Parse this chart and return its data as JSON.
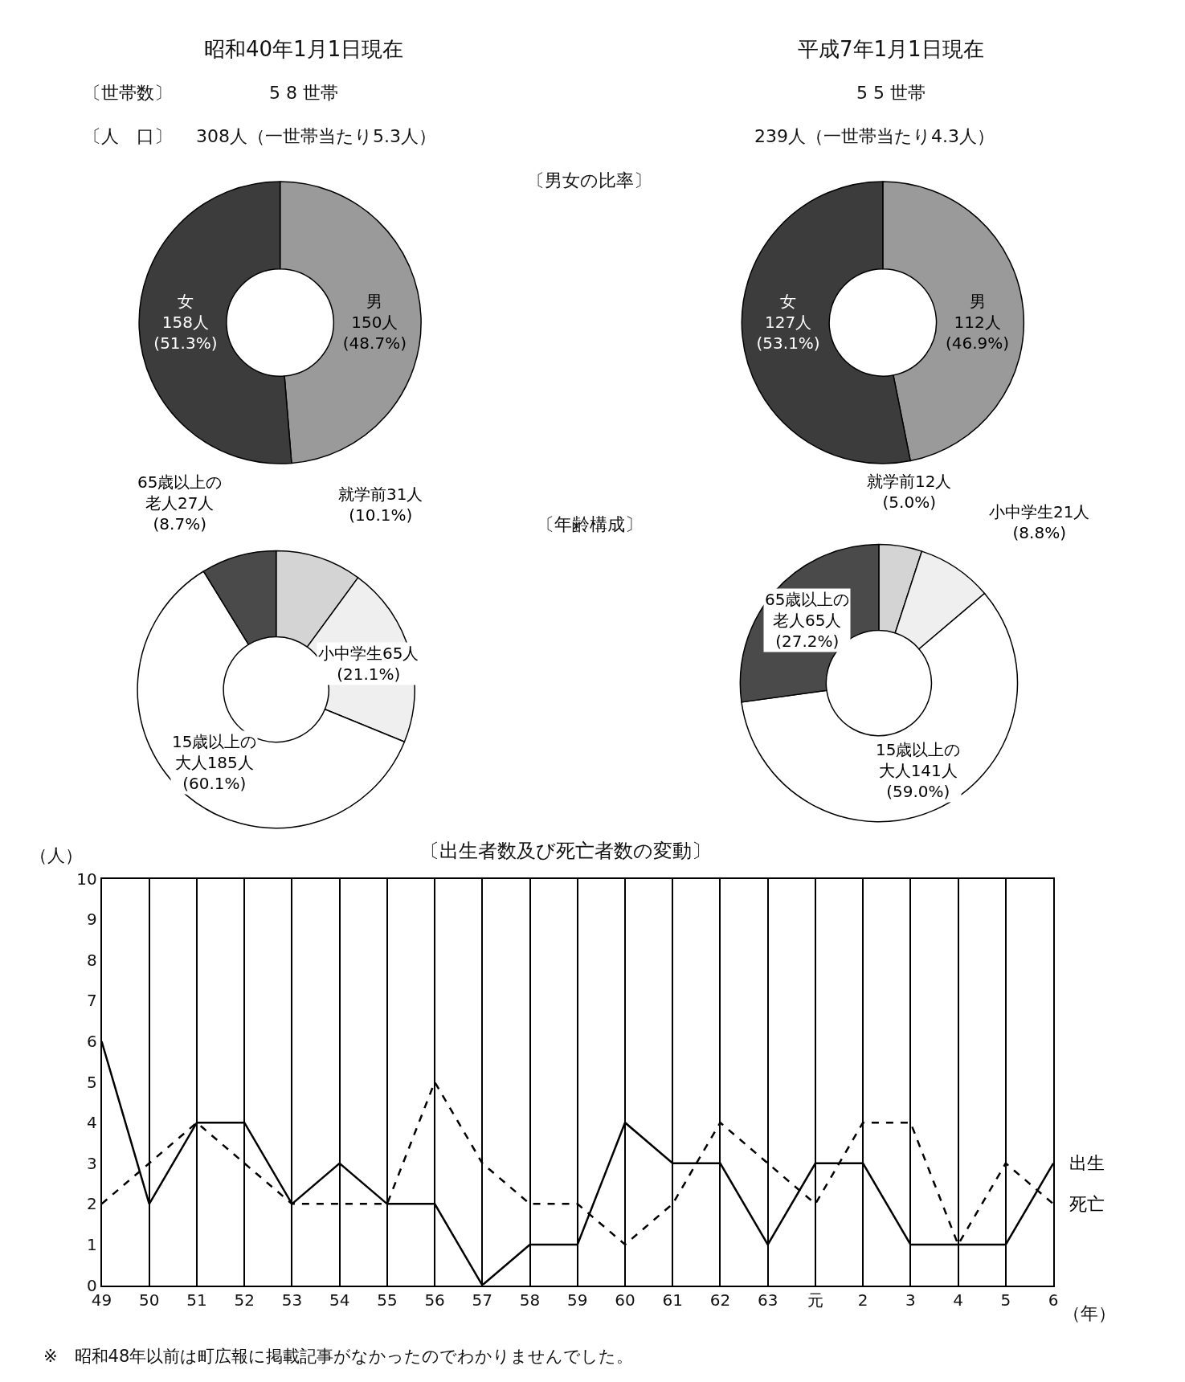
{
  "chart_data": [
    {
      "type": "donut",
      "title": "昭和40年1月1日現在",
      "annotations": [
        "〔世帯数〕",
        "5 8 世帯",
        "〔人　口〕",
        "308人（一世帯当たり5.3人）",
        "〔男女の比率〕"
      ],
      "categories": [
        "男",
        "女"
      ],
      "values": [
        150,
        158
      ],
      "value_labels": [
        "\n150人\n(48.7%)",
        "\n158人\n(51.3%)"
      ],
      "colors": [
        "#9a9a9a",
        "#3c3c3c"
      ]
    },
    {
      "type": "donut",
      "title": "平成7年1月1日現在",
      "annotations": [
        "5 5 世帯",
        "239人（一世帯当たり4.3人）"
      ],
      "categories": [
        "男",
        "女"
      ],
      "values": [
        112,
        127
      ],
      "value_labels": [
        "\n112人\n(46.9%)",
        "\n127人\n(53.1%)"
      ],
      "colors": [
        "#9a9a9a",
        "#3c3c3c"
      ]
    },
    {
      "type": "donut",
      "annotations": [
        "〔年齢構成〕"
      ],
      "categories": [
        "就学前",
        "小中学生",
        "15歳以上の大人",
        "65歳以上の老人"
      ],
      "values": [
        31,
        65,
        185,
        27
      ],
      "value_labels": [
        "31人\n(10.1%)",
        "65人\n(21.1%)",
        "185人\n(60.1%)",
        "27人\n(8.7%)"
      ],
      "colors": [
        "#d4d4d4",
        "#efefef",
        "#ffffff",
        "#4a4a4a"
      ]
    },
    {
      "type": "donut",
      "categories": [
        "就学前",
        "小中学生",
        "15歳以上の大人",
        "65歳以上の老人"
      ],
      "values": [
        12,
        21,
        141,
        65
      ],
      "value_labels": [
        "12人\n(5.0%)",
        "21人\n(8.8%)",
        "141人\n(59.0%)",
        "65人\n(27.2%)"
      ],
      "colors": [
        "#d4d4d4",
        "#efefef",
        "#ffffff",
        "#4a4a4a"
      ]
    },
    {
      "type": "line",
      "title": "〔出生者数及び死亡者数の変動〕",
      "ylabel": "（人）",
      "xlabel": "（年）",
      "annotations": [
        "※　昭和48年以前は町広報に掲載記事がなかったのでわかりませんでした。"
      ],
      "categories": [
        "49",
        "50",
        "51",
        "52",
        "53",
        "54",
        "55",
        "56",
        "57",
        "58",
        "59",
        "60",
        "61",
        "62",
        "63",
        "元",
        "2",
        "3",
        "4",
        "5",
        "6"
      ],
      "series": [
        {
          "name": "出生",
          "color": "#000000",
          "line_style": "solid",
          "values": [
            6,
            2,
            4,
            4,
            2,
            3,
            2,
            2,
            0,
            1,
            1,
            4,
            3,
            3,
            1,
            3,
            3,
            1,
            1,
            1,
            3
          ]
        },
        {
          "name": "死亡",
          "color": "#000000",
          "line_style": "dashed",
          "values": [
            2,
            3,
            4,
            3,
            2,
            2,
            2,
            5,
            3,
            2,
            2,
            1,
            2,
            4,
            3,
            2,
            4,
            4,
            1,
            3,
            2
          ]
        }
      ],
      "ylim": [
        0,
        10
      ],
      "yticks": [
        0,
        1,
        2,
        3,
        4,
        5,
        6,
        7,
        8,
        9,
        10
      ],
      "grid": "x",
      "legend": false,
      "marker": "none"
    }
  ]
}
